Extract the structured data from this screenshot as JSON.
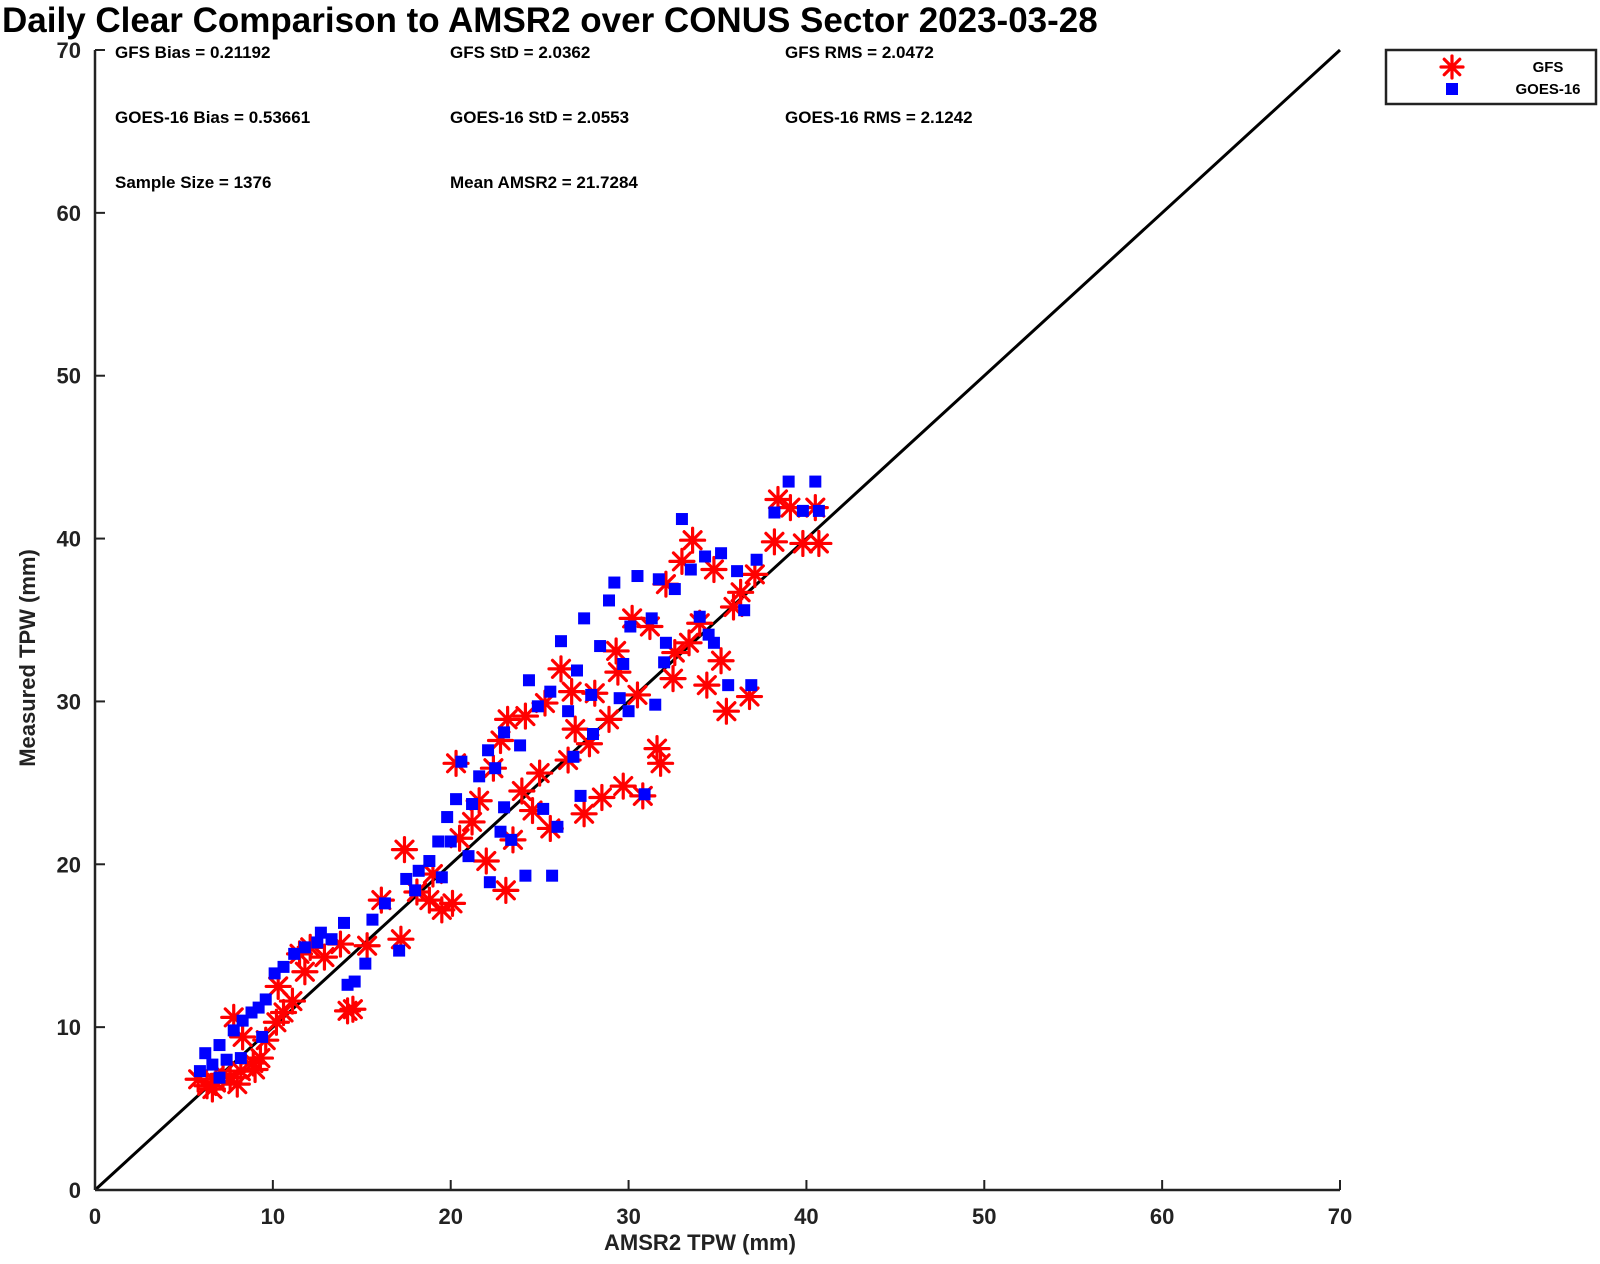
{
  "chart_data": {
    "type": "scatter",
    "title": "Daily Clear Comparison to AMSR2 over CONUS Sector 2023-03-28",
    "xlabel": "AMSR2 TPW (mm)",
    "ylabel": "Measured TPW (mm)",
    "xlim": [
      0,
      70
    ],
    "ylim": [
      0,
      70
    ],
    "x_ticks": [
      "0",
      "10",
      "20",
      "30",
      "40",
      "50",
      "60",
      "70"
    ],
    "y_ticks": [
      "0",
      "10",
      "20",
      "30",
      "40",
      "50",
      "60",
      "70"
    ],
    "grid": false,
    "legend_position": "outside-top-right",
    "reference_line": {
      "x": [
        0,
        70
      ],
      "y": [
        0,
        70
      ],
      "color": "#000000"
    },
    "stats": [
      [
        "GFS Bias = 0.21192",
        "GFS StD = 2.0362",
        "GFS RMS = 2.0472"
      ],
      [
        "GOES-16 Bias = 0.53661",
        "GOES-16 StD = 2.0553",
        "GOES-16 RMS = 2.1242"
      ],
      [
        "Sample Size = 1376",
        "Mean AMSR2 = 21.7284"
      ]
    ],
    "series": [
      {
        "name": "GFS",
        "color": "#ff0000",
        "marker": "asterisk",
        "points": [
          [
            5.8,
            6.8
          ],
          [
            6.3,
            6.4
          ],
          [
            6.8,
            6.6
          ],
          [
            7.2,
            7.1
          ],
          [
            7.6,
            6.9
          ],
          [
            8.2,
            7.3
          ],
          [
            8.9,
            7.8
          ],
          [
            9.3,
            8.1
          ],
          [
            7.8,
            10.6
          ],
          [
            8.3,
            9.4
          ],
          [
            9.6,
            9.2
          ],
          [
            10.2,
            10.3
          ],
          [
            10.6,
            10.9
          ],
          [
            11.1,
            11.6
          ],
          [
            11.5,
            14.5
          ],
          [
            12.1,
            14.9
          ],
          [
            12.9,
            14.3
          ],
          [
            13.8,
            15.1
          ],
          [
            14.2,
            11.0
          ],
          [
            14.5,
            11.1
          ],
          [
            15.3,
            15.0
          ],
          [
            16.1,
            17.8
          ],
          [
            17.2,
            15.4
          ],
          [
            17.4,
            20.9
          ],
          [
            18.1,
            18.3
          ],
          [
            18.8,
            17.8
          ],
          [
            19.5,
            17.2
          ],
          [
            20.3,
            26.2
          ],
          [
            20.1,
            17.6
          ],
          [
            21.2,
            22.6
          ],
          [
            22.4,
            25.9
          ],
          [
            22.8,
            27.6
          ],
          [
            23.1,
            18.4
          ],
          [
            23.5,
            21.5
          ],
          [
            23.2,
            28.9
          ],
          [
            24.2,
            29.1
          ],
          [
            24.6,
            23.3
          ],
          [
            25.3,
            29.9
          ],
          [
            25.6,
            22.2
          ],
          [
            26.2,
            32.0
          ],
          [
            26.6,
            26.4
          ],
          [
            27.0,
            28.3
          ],
          [
            27.5,
            23.1
          ],
          [
            28.1,
            30.5
          ],
          [
            28.5,
            24.1
          ],
          [
            28.9,
            28.9
          ],
          [
            29.3,
            33.1
          ],
          [
            29.7,
            24.8
          ],
          [
            30.2,
            35.1
          ],
          [
            30.5,
            30.4
          ],
          [
            30.8,
            24.2
          ],
          [
            31.2,
            34.6
          ],
          [
            31.6,
            27.1
          ],
          [
            32.1,
            37.2
          ],
          [
            32.5,
            31.4
          ],
          [
            33.0,
            38.6
          ],
          [
            33.4,
            33.6
          ],
          [
            33.6,
            39.9
          ],
          [
            34.0,
            34.8
          ],
          [
            34.4,
            31.0
          ],
          [
            34.8,
            38.1
          ],
          [
            35.2,
            32.5
          ],
          [
            35.5,
            29.4
          ],
          [
            35.9,
            35.8
          ],
          [
            36.3,
            36.7
          ],
          [
            36.8,
            30.3
          ],
          [
            37.1,
            37.8
          ],
          [
            38.2,
            39.8
          ],
          [
            38.4,
            42.4
          ],
          [
            39.1,
            41.9
          ],
          [
            39.8,
            39.7
          ],
          [
            40.5,
            41.9
          ],
          [
            40.7,
            39.7
          ],
          [
            31.8,
            26.2
          ],
          [
            27.8,
            27.4
          ],
          [
            22.0,
            20.2
          ],
          [
            19.0,
            19.4
          ],
          [
            24.0,
            24.5
          ],
          [
            26.8,
            30.6
          ],
          [
            29.4,
            31.8
          ],
          [
            21.6,
            23.9
          ],
          [
            20.5,
            21.6
          ],
          [
            25.0,
            25.6
          ],
          [
            32.6,
            33.0
          ],
          [
            8.0,
            6.5
          ],
          [
            9.0,
            7.4
          ],
          [
            6.6,
            6.2
          ],
          [
            10.3,
            12.5
          ],
          [
            11.8,
            13.4
          ]
        ]
      },
      {
        "name": "GOES-16",
        "color": "#0000ff",
        "marker": "square",
        "points": [
          [
            5.9,
            7.3
          ],
          [
            6.2,
            8.4
          ],
          [
            6.6,
            7.7
          ],
          [
            7.0,
            8.9
          ],
          [
            7.4,
            8.0
          ],
          [
            7.8,
            9.8
          ],
          [
            8.3,
            10.4
          ],
          [
            8.8,
            10.9
          ],
          [
            9.2,
            11.2
          ],
          [
            9.6,
            11.7
          ],
          [
            10.1,
            13.3
          ],
          [
            10.6,
            13.7
          ],
          [
            11.2,
            14.5
          ],
          [
            11.8,
            14.9
          ],
          [
            12.5,
            15.2
          ],
          [
            12.7,
            15.8
          ],
          [
            13.3,
            15.4
          ],
          [
            14.0,
            16.4
          ],
          [
            14.2,
            12.6
          ],
          [
            14.6,
            12.8
          ],
          [
            15.2,
            13.9
          ],
          [
            15.6,
            16.6
          ],
          [
            16.3,
            17.6
          ],
          [
            17.1,
            14.7
          ],
          [
            17.5,
            19.1
          ],
          [
            18.2,
            19.6
          ],
          [
            18.8,
            20.2
          ],
          [
            19.3,
            21.4
          ],
          [
            19.8,
            22.9
          ],
          [
            20.3,
            24.0
          ],
          [
            20.6,
            26.3
          ],
          [
            21.2,
            23.7
          ],
          [
            21.6,
            25.4
          ],
          [
            22.1,
            27.0
          ],
          [
            22.5,
            25.9
          ],
          [
            23.0,
            28.1
          ],
          [
            23.4,
            21.5
          ],
          [
            23.9,
            27.3
          ],
          [
            24.4,
            31.3
          ],
          [
            24.9,
            29.7
          ],
          [
            25.2,
            23.4
          ],
          [
            25.6,
            30.6
          ],
          [
            26.2,
            33.7
          ],
          [
            26.6,
            29.4
          ],
          [
            27.1,
            31.9
          ],
          [
            27.5,
            35.1
          ],
          [
            27.9,
            30.4
          ],
          [
            28.4,
            33.4
          ],
          [
            28.9,
            36.2
          ],
          [
            29.2,
            37.3
          ],
          [
            29.7,
            32.3
          ],
          [
            30.1,
            34.6
          ],
          [
            30.5,
            37.7
          ],
          [
            30.9,
            24.3
          ],
          [
            31.3,
            35.1
          ],
          [
            31.7,
            37.5
          ],
          [
            32.1,
            33.6
          ],
          [
            32.6,
            36.9
          ],
          [
            33.0,
            41.2
          ],
          [
            33.5,
            38.1
          ],
          [
            34.0,
            35.2
          ],
          [
            34.3,
            38.9
          ],
          [
            34.8,
            33.6
          ],
          [
            35.2,
            39.1
          ],
          [
            35.6,
            31.0
          ],
          [
            36.1,
            38.0
          ],
          [
            36.5,
            35.6
          ],
          [
            36.9,
            31.0
          ],
          [
            37.2,
            38.7
          ],
          [
            38.2,
            41.6
          ],
          [
            39.0,
            43.5
          ],
          [
            39.8,
            41.7
          ],
          [
            40.5,
            43.5
          ],
          [
            40.7,
            41.7
          ],
          [
            22.2,
            18.9
          ],
          [
            24.2,
            19.3
          ],
          [
            25.7,
            19.3
          ],
          [
            26.0,
            22.3
          ],
          [
            19.5,
            19.2
          ],
          [
            21.0,
            20.5
          ],
          [
            28.0,
            28.0
          ],
          [
            30.0,
            29.4
          ],
          [
            27.3,
            24.2
          ],
          [
            23.0,
            23.5
          ],
          [
            8.2,
            8.1
          ],
          [
            9.4,
            9.4
          ],
          [
            7.0,
            6.9
          ],
          [
            29.5,
            30.2
          ],
          [
            31.5,
            29.8
          ],
          [
            26.9,
            26.6
          ],
          [
            20.0,
            21.4
          ],
          [
            22.8,
            22.0
          ],
          [
            18.0,
            18.4
          ],
          [
            32.0,
            32.4
          ],
          [
            34.5,
            34.1
          ]
        ]
      }
    ]
  }
}
